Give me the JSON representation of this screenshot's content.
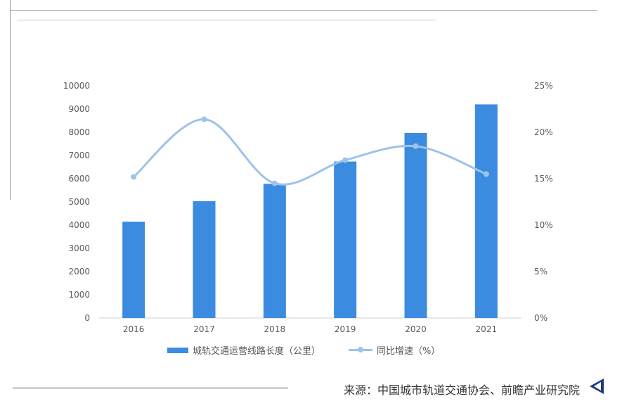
{
  "chart_data": {
    "type": "bar",
    "categories": [
      "2016",
      "2017",
      "2018",
      "2019",
      "2020",
      "2021"
    ],
    "series": [
      {
        "name": "城轨交通运营线路长度（公里）",
        "type": "bar",
        "axis": "left",
        "values": [
          4150,
          5030,
          5780,
          6740,
          7970,
          9200
        ],
        "color": "#3b8be0"
      },
      {
        "name": "同比增速（%）",
        "type": "line",
        "axis": "right",
        "values": [
          15.2,
          21.4,
          14.5,
          17.0,
          18.5,
          15.5
        ],
        "color": "#9dc3ea"
      }
    ],
    "yleft": {
      "ylim": [
        0,
        10000
      ],
      "ticks": [
        "0",
        "1000",
        "2000",
        "3000",
        "4000",
        "5000",
        "6000",
        "7000",
        "8000",
        "9000",
        "10000"
      ]
    },
    "yright": {
      "ylim": [
        0,
        25
      ],
      "ticks": [
        "0%",
        "5%",
        "10%",
        "15%",
        "20%",
        "25%"
      ]
    },
    "legend_position": "bottom",
    "grid": false
  },
  "source_text": "来源：中国城市轨道交通协会、前瞻产业研究院"
}
